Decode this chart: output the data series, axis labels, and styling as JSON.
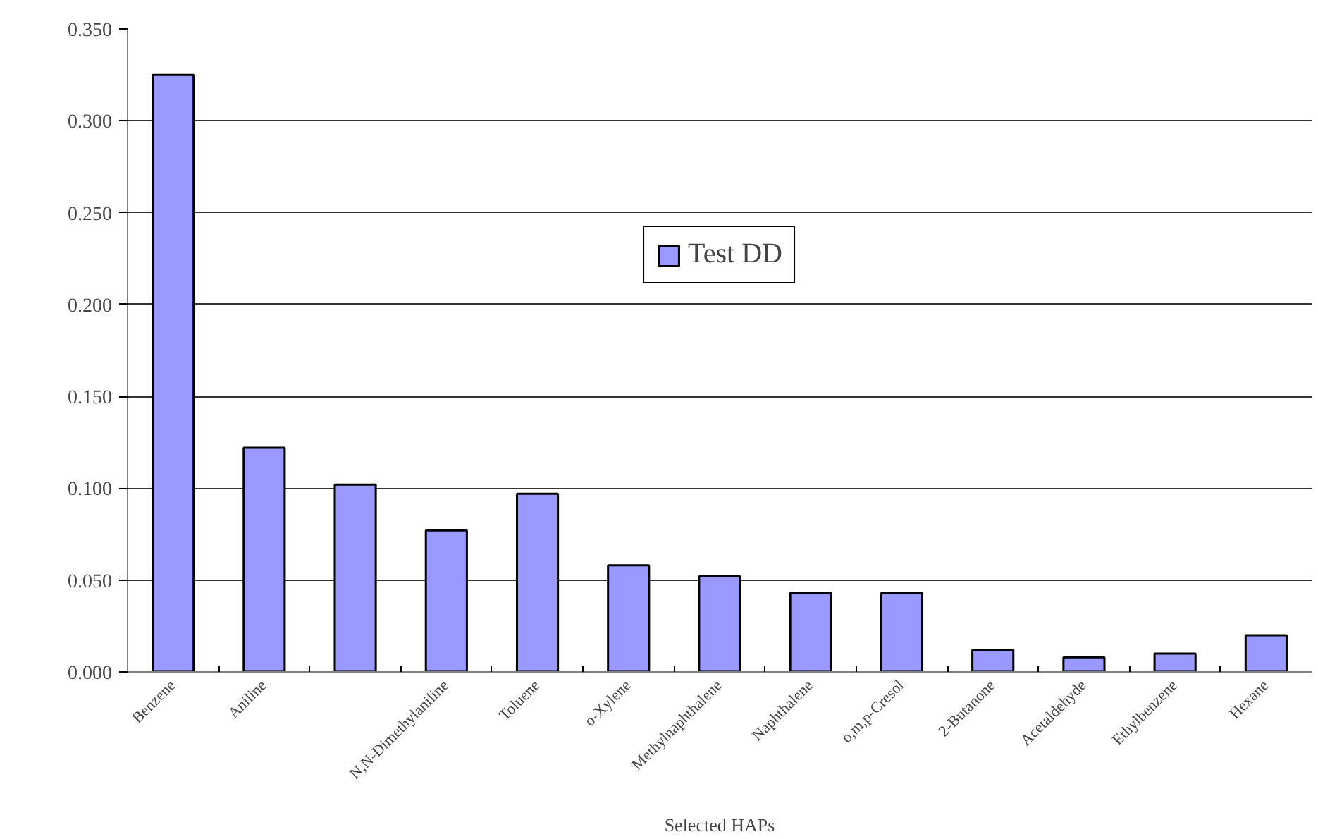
{
  "chart_data": {
    "type": "bar",
    "xlabel": "Selected HAPs",
    "categories": [
      "Benzene",
      "Aniline",
      null,
      "N,N-Dimethylaniline",
      "Toluene",
      "o-Xylene",
      "Methylnaphthalene",
      "Naphthalene",
      "o,m,p-Cresol",
      "2-Butanone",
      "Acetaldehyde",
      "Ethylbenzene",
      "Hexane"
    ],
    "series": [
      {
        "name": "Test DD",
        "color": "#9999ff",
        "values": [
          0.325,
          0.122,
          0.102,
          0.077,
          0.097,
          0.058,
          0.052,
          0.043,
          0.043,
          0.012,
          0.008,
          0.01,
          0.02
        ]
      }
    ],
    "ylim": [
      0,
      0.35
    ],
    "yticks": [
      {
        "value": 0,
        "label": "0.000"
      },
      {
        "value": 0.05,
        "label": "0.050"
      },
      {
        "value": 0.1,
        "label": "0.100"
      },
      {
        "value": 0.15,
        "label": "0.150"
      },
      {
        "value": 0.2,
        "label": "0.200"
      },
      {
        "value": 0.25,
        "label": "0.250"
      },
      {
        "value": 0.3,
        "label": "0.300"
      },
      {
        "value": 0.35,
        "label": "0.350"
      }
    ],
    "grid": "y",
    "legend": "top"
  }
}
